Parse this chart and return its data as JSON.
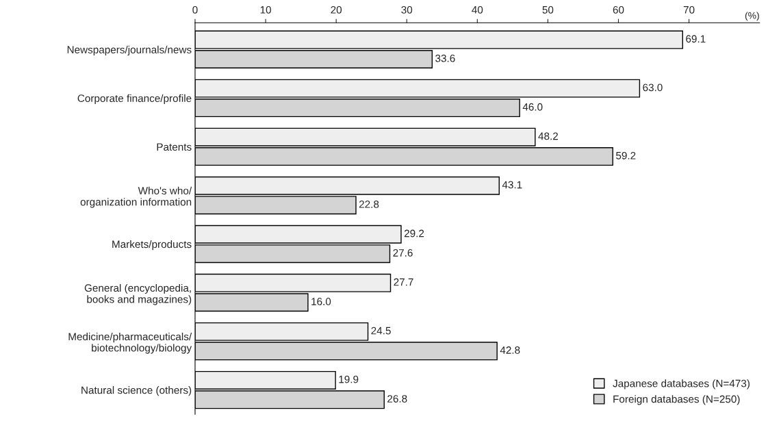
{
  "chart_data": {
    "type": "bar",
    "orientation": "horizontal",
    "xlabel": "(%)",
    "categories": [
      "Newspapers/journals/news",
      "Corporate finance/profile",
      "Patents",
      "Who's who/\norganization information",
      "Markets/products",
      "General (encyclopedia,\nbooks and magazines)",
      "Medicine/pharmaceuticals/\nbiotechnology/biology",
      "Natural science (others)"
    ],
    "series": [
      {
        "name": "Japanese databases (N=473)",
        "color": "#eeeeee",
        "values": [
          69.1,
          63.0,
          48.2,
          43.1,
          29.2,
          27.7,
          24.5,
          19.9
        ],
        "value_labels": [
          "69.1",
          "63.0",
          "48.2",
          "43.1",
          "29.2",
          "27.7",
          "24.5",
          "19.9"
        ]
      },
      {
        "name": "Foreign databases (N=250)",
        "color": "#d4d4d4",
        "values": [
          33.6,
          46.0,
          59.2,
          22.8,
          27.6,
          16.0,
          42.8,
          26.8
        ],
        "value_labels": [
          "33.6",
          "46.0",
          "59.2",
          "22.8",
          "27.6",
          "16.0",
          "42.8",
          "26.8"
        ]
      }
    ],
    "xlim": [
      0,
      80
    ],
    "xticks": [
      0,
      10,
      20,
      30,
      40,
      50,
      60,
      70
    ],
    "grid": false,
    "legend": "bottom right"
  }
}
